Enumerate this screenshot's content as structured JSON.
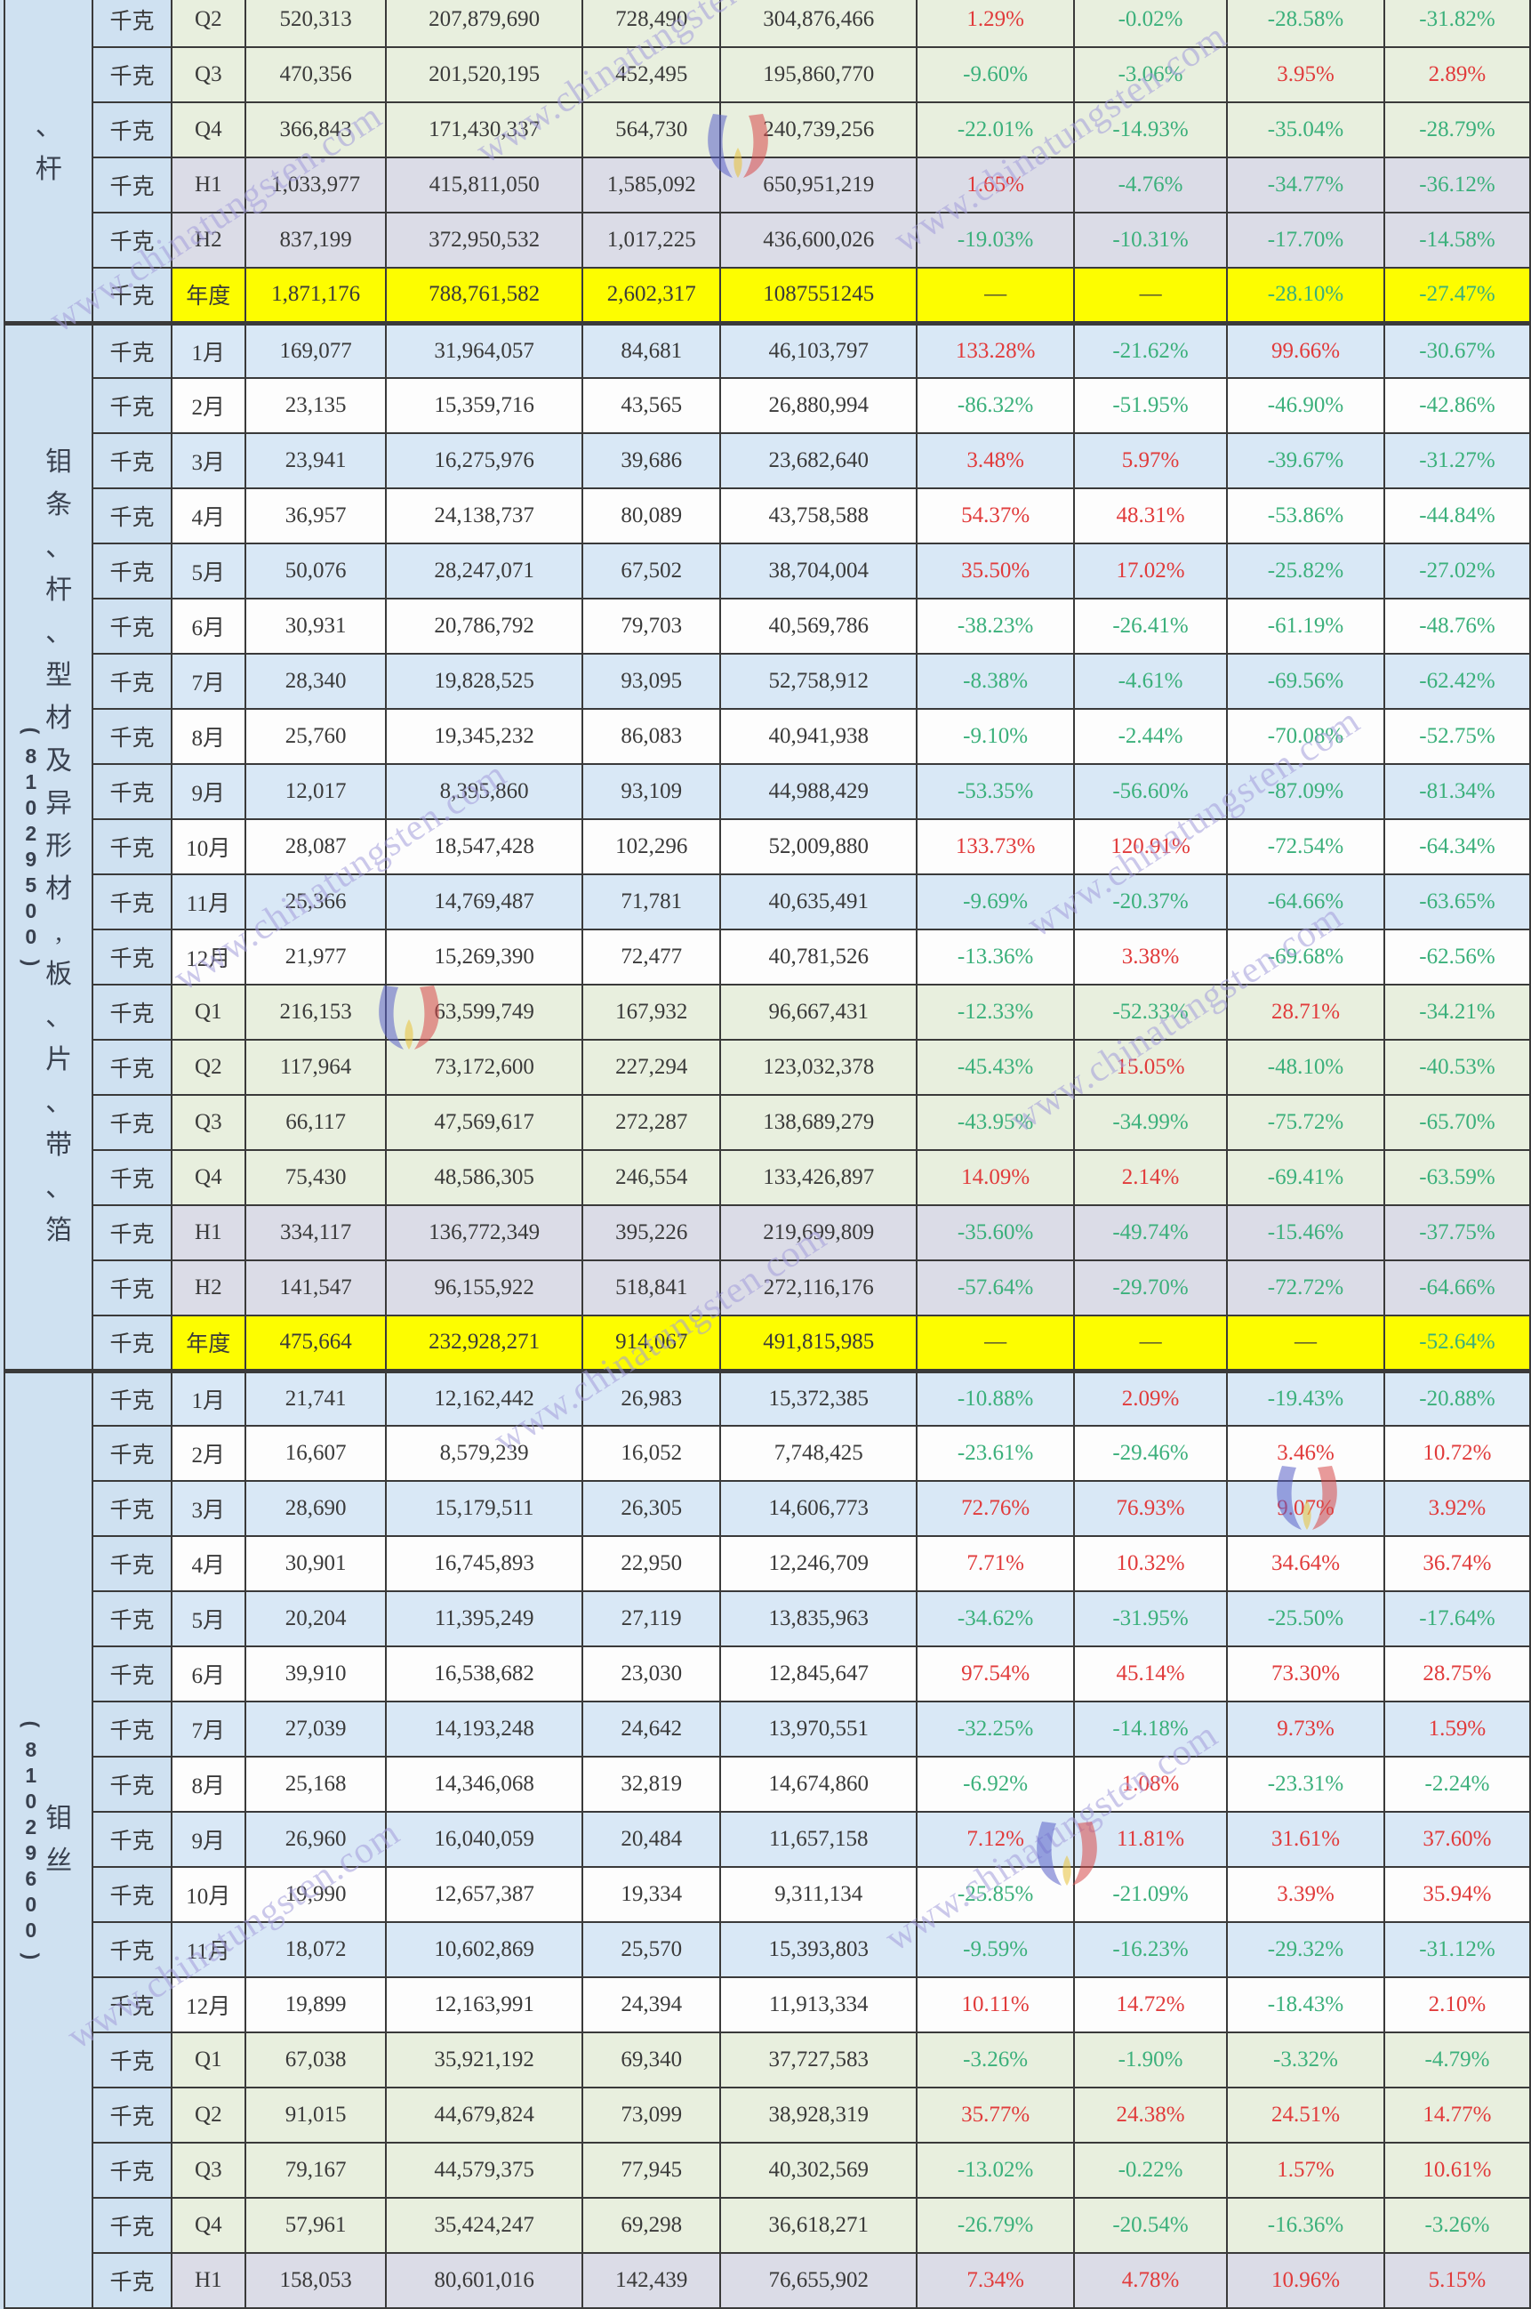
{
  "watermark": {
    "text": "www.chinatungsten.com"
  },
  "table": {
    "unit_label": "千克",
    "colors": {
      "border": "#3a3a3a",
      "row_blue": "#d9e8f6",
      "row_green": "#e8efde",
      "row_gray": "#dbdce7",
      "row_yellow": "#fdfd00",
      "label_bg": "#cfe1f1",
      "positive_pct": "#e13b3b",
      "negative_pct": "#3bb07b"
    },
    "sections": [
      {
        "name": "、杆",
        "code": "",
        "rows": [
          {
            "period": "Q2",
            "bg": "green",
            "cells": [
              "520,313",
              "207,879,690",
              "728,490",
              "304,876,466",
              "1.29%",
              "-0.02%",
              "-28.58%",
              "-31.82%"
            ]
          },
          {
            "period": "Q3",
            "bg": "green",
            "cells": [
              "470,356",
              "201,520,195",
              "452,495",
              "195,860,770",
              "-9.60%",
              "-3.06%",
              "3.95%",
              "2.89%"
            ]
          },
          {
            "period": "Q4",
            "bg": "green",
            "cells": [
              "366,843",
              "171,430,337",
              "564,730",
              "240,739,256",
              "-22.01%",
              "-14.93%",
              "-35.04%",
              "-28.79%"
            ]
          },
          {
            "period": "H1",
            "bg": "gray",
            "cells": [
              "1,033,977",
              "415,811,050",
              "1,585,092",
              "650,951,219",
              "1.65%",
              "-4.76%",
              "-34.77%",
              "-36.12%"
            ]
          },
          {
            "period": "H2",
            "bg": "gray",
            "cells": [
              "837,199",
              "372,950,532",
              "1,017,225",
              "436,600,026",
              "-19.03%",
              "-10.31%",
              "-17.70%",
              "-14.58%"
            ]
          },
          {
            "period": "年度",
            "bg": "yellow",
            "cells": [
              "1,871,176",
              "788,761,582",
              "2,602,317",
              "1087551245",
              "—",
              "—",
              "-28.10%",
              "-27.47%"
            ]
          }
        ]
      },
      {
        "name": "钼条、杆、型材及异形材,板、片、带、箔",
        "code": "(81029500)",
        "rows": [
          {
            "period": "1月",
            "bg": "blue",
            "cells": [
              "169,077",
              "31,964,057",
              "84,681",
              "46,103,797",
              "133.28%",
              "-21.62%",
              "99.66%",
              "-30.67%"
            ]
          },
          {
            "period": "2月",
            "bg": "white",
            "cells": [
              "23,135",
              "15,359,716",
              "43,565",
              "26,880,994",
              "-86.32%",
              "-51.95%",
              "-46.90%",
              "-42.86%"
            ]
          },
          {
            "period": "3月",
            "bg": "blue",
            "cells": [
              "23,941",
              "16,275,976",
              "39,686",
              "23,682,640",
              "3.48%",
              "5.97%",
              "-39.67%",
              "-31.27%"
            ]
          },
          {
            "period": "4月",
            "bg": "white",
            "cells": [
              "36,957",
              "24,138,737",
              "80,089",
              "43,758,588",
              "54.37%",
              "48.31%",
              "-53.86%",
              "-44.84%"
            ]
          },
          {
            "period": "5月",
            "bg": "blue",
            "cells": [
              "50,076",
              "28,247,071",
              "67,502",
              "38,704,004",
              "35.50%",
              "17.02%",
              "-25.82%",
              "-27.02%"
            ]
          },
          {
            "period": "6月",
            "bg": "white",
            "cells": [
              "30,931",
              "20,786,792",
              "79,703",
              "40,569,786",
              "-38.23%",
              "-26.41%",
              "-61.19%",
              "-48.76%"
            ]
          },
          {
            "period": "7月",
            "bg": "blue",
            "cells": [
              "28,340",
              "19,828,525",
              "93,095",
              "52,758,912",
              "-8.38%",
              "-4.61%",
              "-69.56%",
              "-62.42%"
            ]
          },
          {
            "period": "8月",
            "bg": "white",
            "cells": [
              "25,760",
              "19,345,232",
              "86,083",
              "40,941,938",
              "-9.10%",
              "-2.44%",
              "-70.08%",
              "-52.75%"
            ]
          },
          {
            "period": "9月",
            "bg": "blue",
            "cells": [
              "12,017",
              "8,395,860",
              "93,109",
              "44,988,429",
              "-53.35%",
              "-56.60%",
              "-87.09%",
              "-81.34%"
            ]
          },
          {
            "period": "10月",
            "bg": "white",
            "cells": [
              "28,087",
              "18,547,428",
              "102,296",
              "52,009,880",
              "133.73%",
              "120.91%",
              "-72.54%",
              "-64.34%"
            ]
          },
          {
            "period": "11月",
            "bg": "blue",
            "cells": [
              "25,366",
              "14,769,487",
              "71,781",
              "40,635,491",
              "-9.69%",
              "-20.37%",
              "-64.66%",
              "-63.65%"
            ]
          },
          {
            "period": "12月",
            "bg": "white",
            "cells": [
              "21,977",
              "15,269,390",
              "72,477",
              "40,781,526",
              "-13.36%",
              "3.38%",
              "-69.68%",
              "-62.56%"
            ]
          },
          {
            "period": "Q1",
            "bg": "green",
            "cells": [
              "216,153",
              "63,599,749",
              "167,932",
              "96,667,431",
              "-12.33%",
              "-52.33%",
              "28.71%",
              "-34.21%"
            ]
          },
          {
            "period": "Q2",
            "bg": "green",
            "cells": [
              "117,964",
              "73,172,600",
              "227,294",
              "123,032,378",
              "-45.43%",
              "15.05%",
              "-48.10%",
              "-40.53%"
            ]
          },
          {
            "period": "Q3",
            "bg": "green",
            "cells": [
              "66,117",
              "47,569,617",
              "272,287",
              "138,689,279",
              "-43.95%",
              "-34.99%",
              "-75.72%",
              "-65.70%"
            ]
          },
          {
            "period": "Q4",
            "bg": "green",
            "cells": [
              "75,430",
              "48,586,305",
              "246,554",
              "133,426,897",
              "14.09%",
              "2.14%",
              "-69.41%",
              "-63.59%"
            ]
          },
          {
            "period": "H1",
            "bg": "gray",
            "cells": [
              "334,117",
              "136,772,349",
              "395,226",
              "219,699,809",
              "-35.60%",
              "-49.74%",
              "-15.46%",
              "-37.75%"
            ]
          },
          {
            "period": "H2",
            "bg": "gray",
            "cells": [
              "141,547",
              "96,155,922",
              "518,841",
              "272,116,176",
              "-57.64%",
              "-29.70%",
              "-72.72%",
              "-64.66%"
            ]
          },
          {
            "period": "年度",
            "bg": "yellow",
            "cells": [
              "475,664",
              "232,928,271",
              "914,067",
              "491,815,985",
              "—",
              "—",
              "—",
              "-52.64%"
            ]
          }
        ]
      },
      {
        "name": "钼丝",
        "code": "(81029600)",
        "rows": [
          {
            "period": "1月",
            "bg": "blue",
            "cells": [
              "21,741",
              "12,162,442",
              "26,983",
              "15,372,385",
              "-10.88%",
              "2.09%",
              "-19.43%",
              "-20.88%"
            ]
          },
          {
            "period": "2月",
            "bg": "white",
            "cells": [
              "16,607",
              "8,579,239",
              "16,052",
              "7,748,425",
              "-23.61%",
              "-29.46%",
              "3.46%",
              "10.72%"
            ]
          },
          {
            "period": "3月",
            "bg": "blue",
            "cells": [
              "28,690",
              "15,179,511",
              "26,305",
              "14,606,773",
              "72.76%",
              "76.93%",
              "9.07%",
              "3.92%"
            ]
          },
          {
            "period": "4月",
            "bg": "white",
            "cells": [
              "30,901",
              "16,745,893",
              "22,950",
              "12,246,709",
              "7.71%",
              "10.32%",
              "34.64%",
              "36.74%"
            ]
          },
          {
            "period": "5月",
            "bg": "blue",
            "cells": [
              "20,204",
              "11,395,249",
              "27,119",
              "13,835,963",
              "-34.62%",
              "-31.95%",
              "-25.50%",
              "-17.64%"
            ]
          },
          {
            "period": "6月",
            "bg": "white",
            "cells": [
              "39,910",
              "16,538,682",
              "23,030",
              "12,845,647",
              "97.54%",
              "45.14%",
              "73.30%",
              "28.75%"
            ]
          },
          {
            "period": "7月",
            "bg": "blue",
            "cells": [
              "27,039",
              "14,193,248",
              "24,642",
              "13,970,551",
              "-32.25%",
              "-14.18%",
              "9.73%",
              "1.59%"
            ]
          },
          {
            "period": "8月",
            "bg": "white",
            "cells": [
              "25,168",
              "14,346,068",
              "32,819",
              "14,674,860",
              "-6.92%",
              "1.08%",
              "-23.31%",
              "-2.24%"
            ]
          },
          {
            "period": "9月",
            "bg": "blue",
            "cells": [
              "26,960",
              "16,040,059",
              "20,484",
              "11,657,158",
              "7.12%",
              "11.81%",
              "31.61%",
              "37.60%"
            ]
          },
          {
            "period": "10月",
            "bg": "white",
            "cells": [
              "19,990",
              "12,657,387",
              "19,334",
              "9,311,134",
              "-25.85%",
              "-21.09%",
              "3.39%",
              "35.94%"
            ]
          },
          {
            "period": "11月",
            "bg": "blue",
            "cells": [
              "18,072",
              "10,602,869",
              "25,570",
              "15,393,803",
              "-9.59%",
              "-16.23%",
              "-29.32%",
              "-31.12%"
            ]
          },
          {
            "period": "12月",
            "bg": "white",
            "cells": [
              "19,899",
              "12,163,991",
              "24,394",
              "11,913,334",
              "10.11%",
              "14.72%",
              "-18.43%",
              "2.10%"
            ]
          },
          {
            "period": "Q1",
            "bg": "green",
            "cells": [
              "67,038",
              "35,921,192",
              "69,340",
              "37,727,583",
              "-3.26%",
              "-1.90%",
              "-3.32%",
              "-4.79%"
            ]
          },
          {
            "period": "Q2",
            "bg": "green",
            "cells": [
              "91,015",
              "44,679,824",
              "73,099",
              "38,928,319",
              "35.77%",
              "24.38%",
              "24.51%",
              "14.77%"
            ]
          },
          {
            "period": "Q3",
            "bg": "green",
            "cells": [
              "79,167",
              "44,579,375",
              "77,945",
              "40,302,569",
              "-13.02%",
              "-0.22%",
              "1.57%",
              "10.61%"
            ]
          },
          {
            "period": "Q4",
            "bg": "green",
            "cells": [
              "57,961",
              "35,424,247",
              "69,298",
              "36,618,271",
              "-26.79%",
              "-20.54%",
              "-16.36%",
              "-3.26%"
            ]
          },
          {
            "period": "H1",
            "bg": "gray",
            "cells": [
              "158,053",
              "80,601,016",
              "142,439",
              "76,655,902",
              "7.34%",
              "4.78%",
              "10.96%",
              "5.15%"
            ]
          }
        ]
      }
    ]
  }
}
